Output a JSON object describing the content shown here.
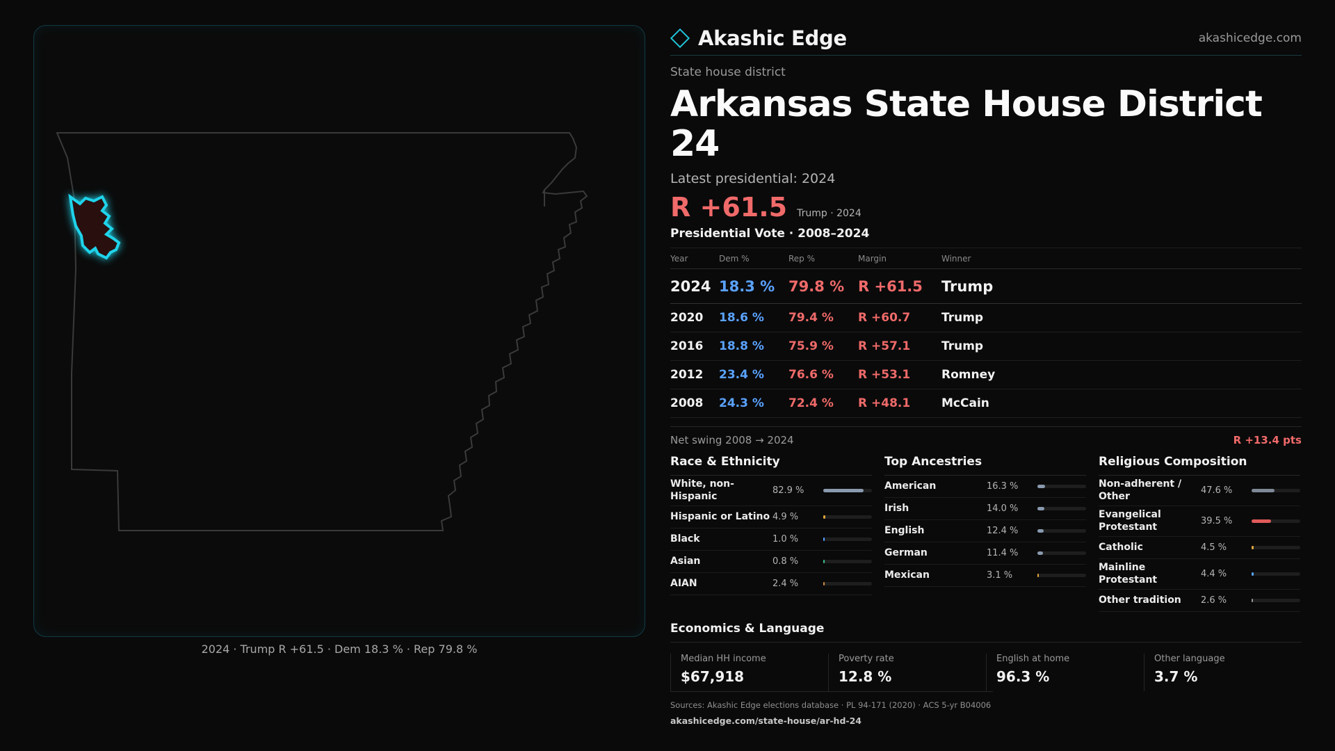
{
  "brand": {
    "name": "Akashic Edge",
    "url": "akashicedge.com"
  },
  "district": {
    "kind": "State house district",
    "title": "Arkansas State House District 24",
    "latest_label": "Latest presidential: 2024",
    "margin": "R +61.5",
    "margin_sub": "Trump · 2024"
  },
  "map": {
    "caption": "2024 · Trump R +61.5 · Dem 18.3 % · Rep 79.8 %",
    "highlight_color": "#1fd3ea"
  },
  "vote": {
    "heading": "Presidential Vote · 2008–2024",
    "columns": [
      "Year",
      "Dem %",
      "Rep %",
      "Margin",
      "Winner"
    ],
    "rows": [
      {
        "year": "2024",
        "dem": "18.3 %",
        "rep": "79.8 %",
        "margin": "R +61.5",
        "winner": "Trump"
      },
      {
        "year": "2020",
        "dem": "18.6 %",
        "rep": "79.4 %",
        "margin": "R +60.7",
        "winner": "Trump"
      },
      {
        "year": "2016",
        "dem": "18.8 %",
        "rep": "75.9 %",
        "margin": "R +57.1",
        "winner": "Trump"
      },
      {
        "year": "2012",
        "dem": "23.4 %",
        "rep": "76.6 %",
        "margin": "R +53.1",
        "winner": "Romney"
      },
      {
        "year": "2008",
        "dem": "24.3 %",
        "rep": "72.4 %",
        "margin": "R +48.1",
        "winner": "McCain"
      }
    ],
    "swing_label": "Net swing 2008 → 2024",
    "swing_value": "R +13.4 pts"
  },
  "race": {
    "heading": "Race & Ethnicity",
    "items": [
      {
        "name": "White, non-Hispanic",
        "pct": "82.9 %",
        "share": 0.829,
        "color": "#8a9aae"
      },
      {
        "name": "Hispanic or Latino",
        "pct": "4.9 %",
        "share": 0.049,
        "color": "#e0a63a"
      },
      {
        "name": "Black",
        "pct": "1.0 %",
        "share": 0.01,
        "color": "#5aa2ff"
      },
      {
        "name": "Asian",
        "pct": "0.8 %",
        "share": 0.008,
        "color": "#3bbf8a"
      },
      {
        "name": "AIAN",
        "pct": "2.4 %",
        "share": 0.024,
        "color": "#d08a3a"
      }
    ]
  },
  "ancestry": {
    "heading": "Top Ancestries",
    "items": [
      {
        "name": "American",
        "pct": "16.3 %",
        "share": 0.163,
        "color": "#8a9aae"
      },
      {
        "name": "Irish",
        "pct": "14.0 %",
        "share": 0.14,
        "color": "#8a9aae"
      },
      {
        "name": "English",
        "pct": "12.4 %",
        "share": 0.124,
        "color": "#8a9aae"
      },
      {
        "name": "German",
        "pct": "11.4 %",
        "share": 0.114,
        "color": "#8a9aae"
      },
      {
        "name": "Mexican",
        "pct": "3.1 %",
        "share": 0.031,
        "color": "#e0a63a"
      }
    ]
  },
  "religion": {
    "heading": "Religious Composition",
    "items": [
      {
        "name": "Non-adherent / Other",
        "pct": "47.6 %",
        "share": 0.476,
        "color": "#7f8896"
      },
      {
        "name": "Evangelical Protestant",
        "pct": "39.5 %",
        "share": 0.395,
        "color": "#e05a5a"
      },
      {
        "name": "Catholic",
        "pct": "4.5 %",
        "share": 0.045,
        "color": "#e0a63a"
      },
      {
        "name": "Mainline Protestant",
        "pct": "4.4 %",
        "share": 0.044,
        "color": "#5aa2ff"
      },
      {
        "name": "Other tradition",
        "pct": "2.6 %",
        "share": 0.026,
        "color": "#9a9a9a"
      }
    ]
  },
  "economics": {
    "heading": "Economics & Language",
    "items": [
      {
        "label": "Median HH income",
        "value": "$67,918"
      },
      {
        "label": "Poverty rate",
        "value": "12.8 %"
      },
      {
        "label": "English at home",
        "value": "96.3 %"
      },
      {
        "label": "Other language",
        "value": "3.7 %"
      }
    ]
  },
  "sources": {
    "text": "Sources: Akashic Edge elections database · PL 94-171 (2020) · ACS 5-yr B04006",
    "url": "akashicedge.com/state-house/ar-hd-24"
  }
}
